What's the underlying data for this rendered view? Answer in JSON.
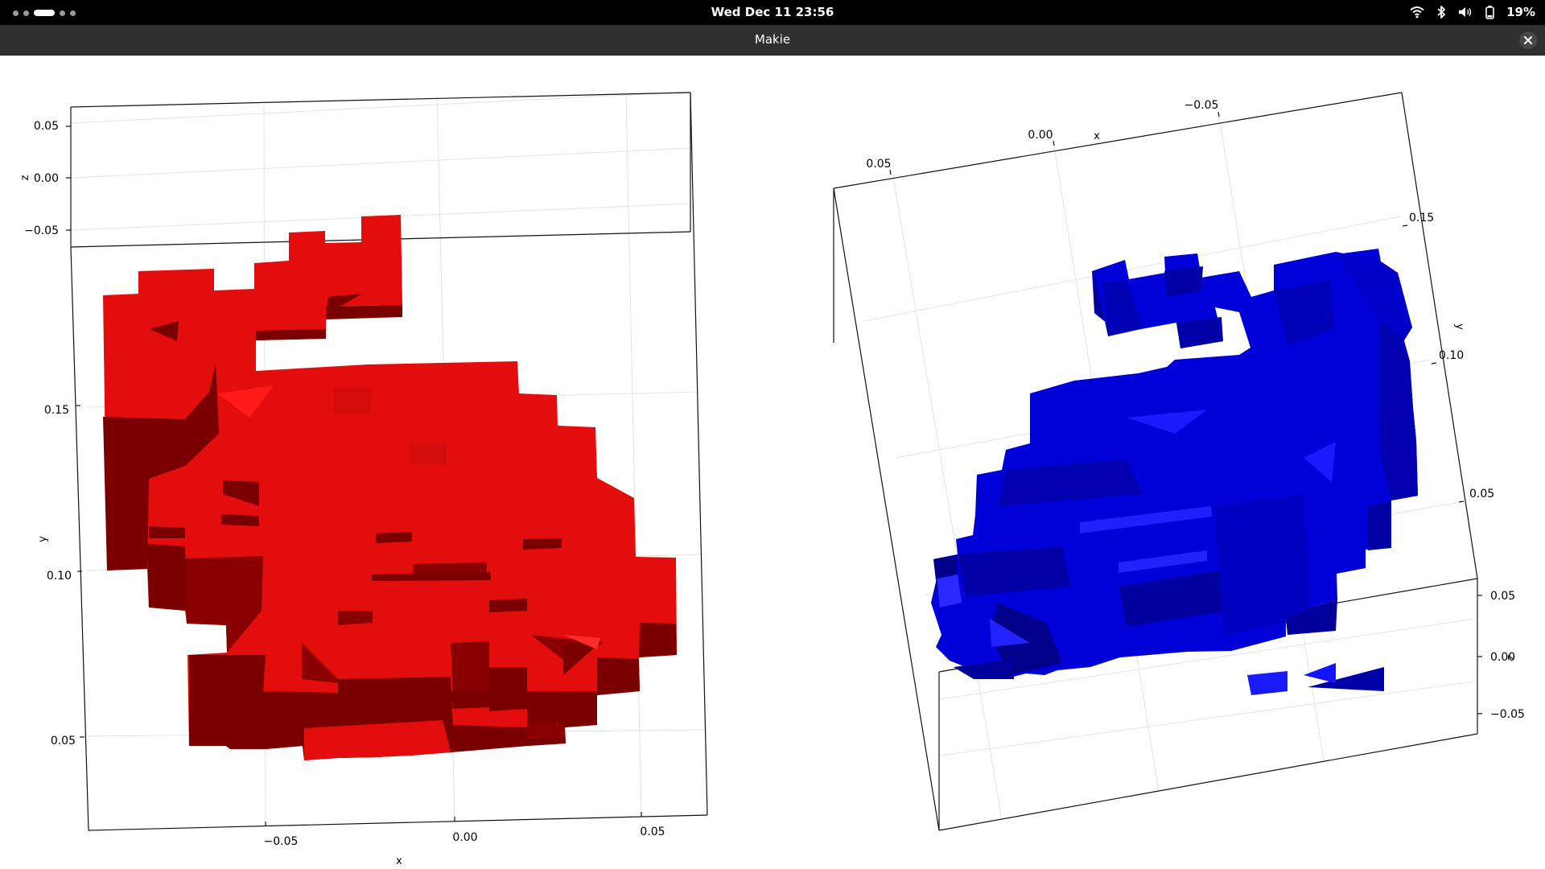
{
  "topbar": {
    "clock": "Wed Dec 11  23:56",
    "battery": "19%",
    "icons": [
      "wifi-icon",
      "bluetooth-icon",
      "volume-icon",
      "battery-icon"
    ]
  },
  "window": {
    "title": "Makie",
    "close_icon": "close-icon"
  },
  "colors": {
    "left_mesh": "#e30d0d",
    "right_mesh": "#0000e6"
  },
  "chart_data": [
    {
      "type": "voxel-3d",
      "color": "red",
      "xlabel": "x",
      "ylabel": "y",
      "zlabel": "z",
      "x_ticks": [
        "−0.05",
        "0.00",
        "0.05"
      ],
      "y_ticks": [
        "0.15",
        "0.10",
        "0.05"
      ],
      "z_ticks": [
        "0.05",
        "0.00",
        "−0.05"
      ],
      "grid": true
    },
    {
      "type": "voxel-3d",
      "color": "blue",
      "xlabel": "x",
      "ylabel": "y",
      "zlabel": "z",
      "x_ticks": [
        "0.05",
        "0.00",
        "−0.05"
      ],
      "y_ticks": [
        "0.15",
        "0.10",
        "0.05"
      ],
      "z_ticks": [
        "0.05",
        "0.00",
        "−0.05"
      ],
      "grid": true
    }
  ]
}
